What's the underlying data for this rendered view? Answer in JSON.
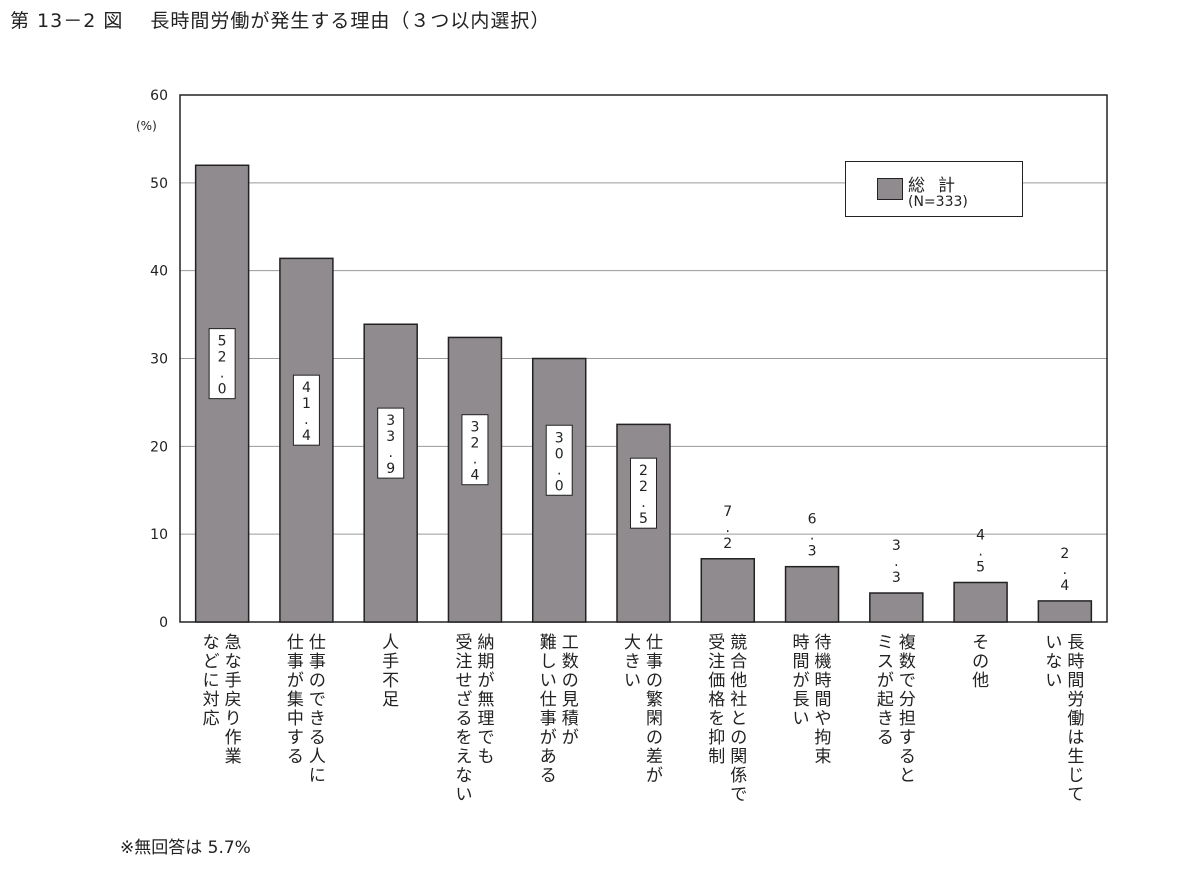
{
  "figure": {
    "title": "第 13－2 図　 長時間労働が発生する理由（３つ以内選択）",
    "unit_label": "(%)",
    "note": "※無回答は 5.7%"
  },
  "legend": {
    "name": "総計",
    "n": "(N=333)"
  },
  "colors": {
    "bar": "#8f8b8e",
    "grid": "#9a9a9a",
    "axis": "#222222",
    "text": "#222222"
  },
  "chart_data": {
    "type": "bar",
    "title": "長時間労働が発生する理由（３つ以内選択）",
    "ylabel": "(%)",
    "ylim": [
      0,
      60
    ],
    "yticks": [
      0,
      10,
      20,
      30,
      40,
      50,
      60
    ],
    "grid": true,
    "legend_position": "top-right",
    "categories": [
      [
        "急な手戻り作業",
        "などに対応"
      ],
      [
        "仕事のできる人に",
        "仕事が集中する"
      ],
      [
        "人手不足"
      ],
      [
        "納期が無理でも",
        "受注せざるをえない"
      ],
      [
        "工数の見積が",
        "難しい仕事がある"
      ],
      [
        "仕事の繁閑の差が",
        "大きい"
      ],
      [
        "競合他社との関係で",
        "受注価格を抑制"
      ],
      [
        "待機時間や拘束",
        "時間が長い"
      ],
      [
        "複数で分担すると",
        "ミスが起きる"
      ],
      [
        "その他"
      ],
      [
        "長時間労働は生じて",
        "いない"
      ]
    ],
    "series": [
      {
        "name": "総計",
        "values": [
          52.0,
          41.4,
          33.9,
          32.4,
          30.0,
          22.5,
          7.2,
          6.3,
          3.3,
          4.5,
          2.4
        ]
      }
    ],
    "labels": [
      "52.0",
      "41.4",
      "33.9",
      "32.4",
      "30.0",
      "22.5",
      "7.2",
      "6.3",
      "3.3",
      "4.5",
      "2.4"
    ]
  }
}
